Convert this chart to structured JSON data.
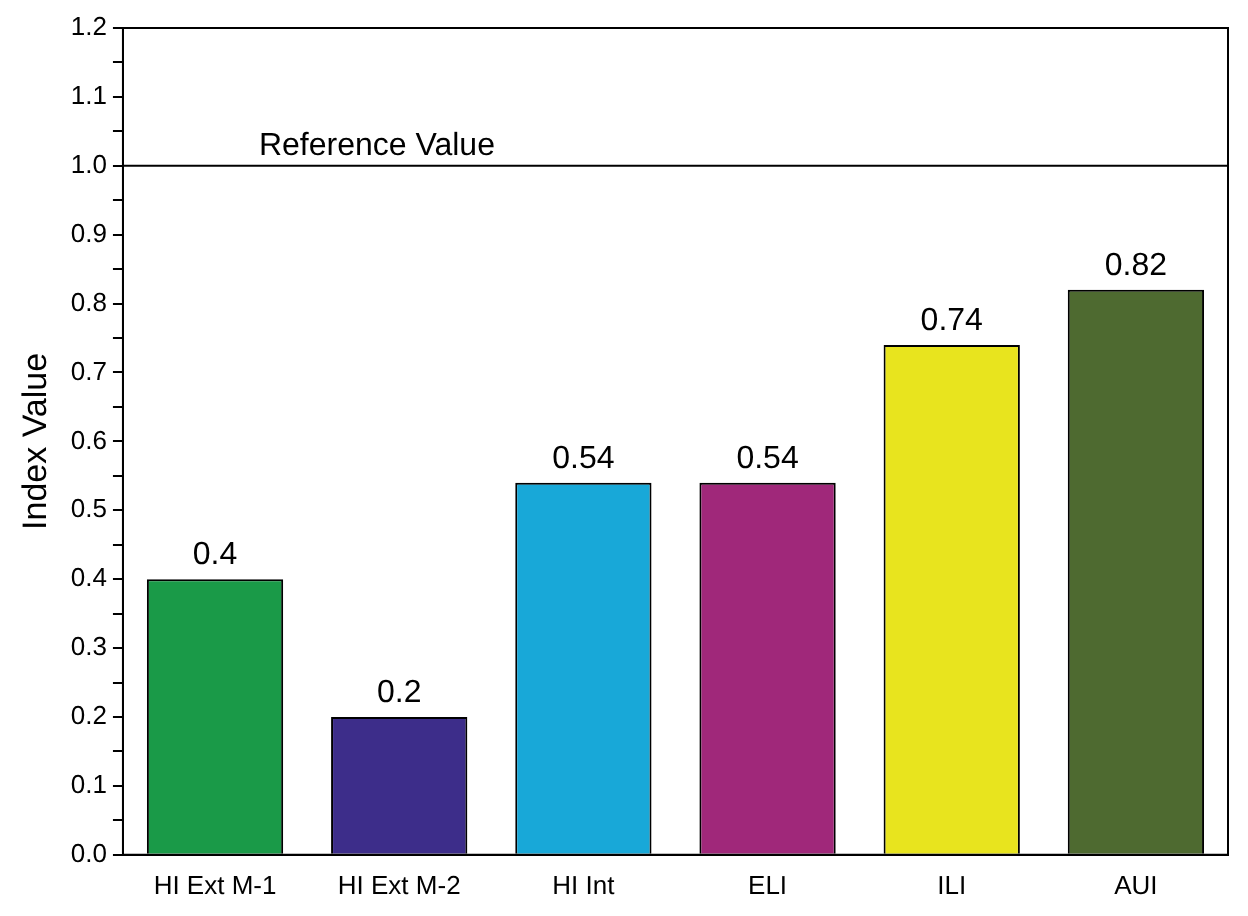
{
  "chart_data": {
    "type": "bar",
    "ylabel": "Index Value",
    "categories": [
      "HI Ext M-1",
      "HI Ext M-2",
      "HI Int",
      "ELI",
      "ILI",
      "AUI"
    ],
    "values": [
      0.4,
      0.2,
      0.54,
      0.54,
      0.74,
      0.82
    ],
    "colors": [
      "#1a9a48",
      "#3d2d8a",
      "#18a8d8",
      "#a0287a",
      "#e8e41e",
      "#4e6a30"
    ],
    "ylim": [
      0,
      1.2
    ],
    "yticks": [
      {
        "value": 0,
        "label": "0.0"
      },
      {
        "value": 0.05,
        "label": null
      },
      0.1,
      {
        "value": 0.15,
        "label": null
      },
      0.2,
      {
        "value": 0.25,
        "label": null
      },
      0.3,
      {
        "value": 0.35,
        "label": null
      },
      0.4,
      {
        "value": 0.45,
        "label": null
      },
      0.5,
      {
        "value": 0.55,
        "label": null
      },
      0.6,
      {
        "value": 0.65,
        "label": null
      },
      0.7,
      {
        "value": 0.75,
        "label": null
      },
      0.8,
      {
        "value": 0.85,
        "label": null
      },
      0.9,
      {
        "value": 0.95,
        "label": null
      },
      {
        "value": 1,
        "label": "1.0"
      },
      {
        "value": 1.05,
        "label": null
      },
      1.1,
      {
        "value": 1.15,
        "label": null
      },
      1.2
    ],
    "grid": false,
    "data_labels": true,
    "ref_lines": [
      {
        "axis": "y",
        "value": 1,
        "label": "Reference Value",
        "color": "#000000"
      }
    ]
  }
}
